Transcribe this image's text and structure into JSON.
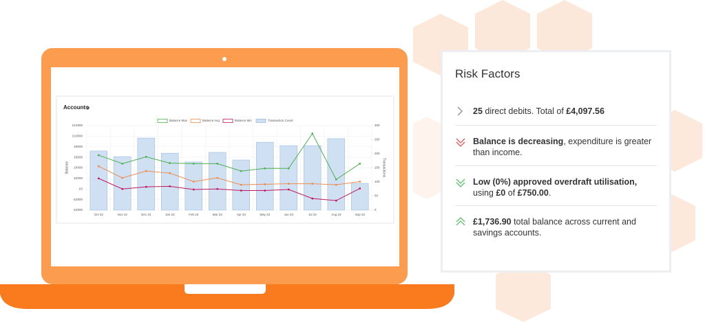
{
  "chart_data": {
    "type": "combo",
    "title": "Accounts",
    "categories": [
      "Oct 22",
      "Nov 22",
      "Dec 22",
      "Jan 23",
      "Feb 23",
      "Mar 23",
      "Apr 23",
      "May 23",
      "Jun 23",
      "Jul 23",
      "Aug 23",
      "Sep 23"
    ],
    "series": [
      {
        "name": "Balance Max",
        "color": "#4caf50",
        "type": "line",
        "values": [
          6400,
          4800,
          6100,
          4900,
          4800,
          4800,
          3400,
          3900,
          3900,
          10500,
          1800,
          4800
        ]
      },
      {
        "name": "Balance Avg",
        "color": "#ef8a4b",
        "type": "line",
        "values": [
          4300,
          2100,
          3400,
          3000,
          1400,
          2100,
          800,
          900,
          1000,
          1000,
          800,
          1400
        ]
      },
      {
        "name": "Balance Min",
        "color": "#c2185b",
        "type": "line",
        "values": [
          2000,
          0,
          400,
          500,
          -100,
          0,
          -300,
          -300,
          -100,
          -1800,
          -2200,
          100
        ]
      },
      {
        "name": "Transaction Count",
        "color": "#cfe0f3",
        "type": "bar",
        "axis": "y2",
        "values": [
          210,
          190,
          256,
          202,
          171,
          205,
          178,
          241,
          229,
          229,
          254,
          95
        ]
      }
    ],
    "y_label": "Balance",
    "y2_label": "Transactions",
    "ylim": [
      -4000,
      12000
    ],
    "yticks": [
      {
        "value": -4000,
        "label": "-£4000"
      },
      {
        "value": -2000,
        "label": "-£2000"
      },
      {
        "value": 0,
        "label": "£0"
      },
      {
        "value": 2000,
        "label": "£2000"
      },
      {
        "value": 4000,
        "label": "£4000"
      },
      {
        "value": 6000,
        "label": "£6000"
      },
      {
        "value": 8000,
        "label": "£8000"
      },
      {
        "value": 10000,
        "label": "£10000"
      },
      {
        "value": 12000,
        "label": "£12000"
      }
    ],
    "y2lim": [
      0,
      300
    ],
    "y2ticks": [
      0,
      50,
      100,
      150,
      200,
      250,
      300
    ],
    "grid": true,
    "legend": "top"
  },
  "risk_factors": {
    "title": "Risk Factors",
    "items": [
      {
        "parts": [
          {
            "text": "25",
            "bold": true
          },
          {
            "text": " direct debits. Total of ",
            "bold": false
          },
          {
            "text": "£4,097.56",
            "bold": true
          }
        ]
      },
      {
        "parts": [
          {
            "text": "Balance is decreasing",
            "bold": true
          },
          {
            "text": ", expenditure is greater than income.",
            "bold": false
          }
        ]
      },
      {
        "parts": [
          {
            "text": "Low (0%) approved overdraft utilisation,",
            "bold": true
          },
          {
            "text": " using ",
            "bold": false
          },
          {
            "text": "£0",
            "bold": true
          },
          {
            "text": " of ",
            "bold": false
          },
          {
            "text": "£750.00",
            "bold": true
          },
          {
            "text": ".",
            "bold": false
          }
        ]
      },
      {
        "parts": [
          {
            "text": "£1,736.90",
            "bold": true
          },
          {
            "text": " total balance across current and savings accounts.",
            "bold": false
          }
        ]
      }
    ]
  }
}
